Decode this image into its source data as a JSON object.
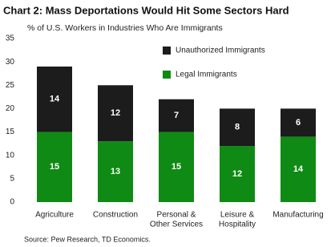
{
  "chart_data": {
    "type": "stacked_bar",
    "title": "Chart 2: Mass Deportations Would Hit Some Sectors Hard",
    "subtitle": "% of U.S. Workers in Industries Who Are Immigrants",
    "source": "Source: Pew Research, TD Economics.",
    "categories": [
      [
        "Agriculture"
      ],
      [
        "Construction"
      ],
      [
        "Personal &",
        "Other Services"
      ],
      [
        "Leisure &",
        "Hospitality"
      ],
      [
        "Manufacturing"
      ]
    ],
    "series": [
      {
        "name": "Legal Immigrants",
        "color": "#0f8a14",
        "values": [
          15,
          13,
          15,
          12,
          14
        ]
      },
      {
        "name": "Unauthorized Immigrants",
        "color": "#1c1c1c",
        "values": [
          14,
          12,
          7,
          8,
          6
        ]
      }
    ],
    "ylim": [
      0,
      35
    ],
    "yticks": [
      0,
      5,
      10,
      15,
      20,
      25,
      30,
      35
    ],
    "grid": false,
    "legend": "top-right"
  }
}
